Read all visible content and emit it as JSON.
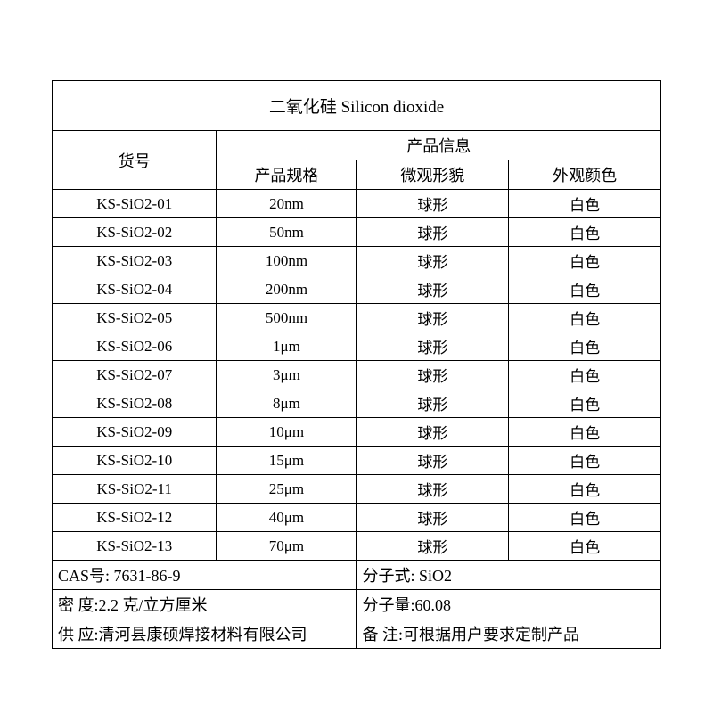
{
  "title": "二氧化硅 Silicon dioxide",
  "headers": {
    "product_no": "货号",
    "product_info": "产品信息",
    "spec": "产品规格",
    "morphology": "微观形貌",
    "appearance": "外观颜色"
  },
  "rows": [
    {
      "no": "KS-SiO2-01",
      "spec": "20nm",
      "morph": "球形",
      "color": "白色"
    },
    {
      "no": "KS-SiO2-02",
      "spec": "50nm",
      "morph": "球形",
      "color": "白色"
    },
    {
      "no": "KS-SiO2-03",
      "spec": "100nm",
      "morph": "球形",
      "color": "白色"
    },
    {
      "no": "KS-SiO2-04",
      "spec": "200nm",
      "morph": "球形",
      "color": "白色"
    },
    {
      "no": "KS-SiO2-05",
      "spec": "500nm",
      "morph": "球形",
      "color": "白色"
    },
    {
      "no": "KS-SiO2-06",
      "spec": "1μm",
      "morph": "球形",
      "color": "白色"
    },
    {
      "no": "KS-SiO2-07",
      "spec": "3μm",
      "morph": "球形",
      "color": "白色"
    },
    {
      "no": "KS-SiO2-08",
      "spec": "8μm",
      "morph": "球形",
      "color": "白色"
    },
    {
      "no": "KS-SiO2-09",
      "spec": "10μm",
      "morph": "球形",
      "color": "白色"
    },
    {
      "no": "KS-SiO2-10",
      "spec": "15μm",
      "morph": "球形",
      "color": "白色"
    },
    {
      "no": "KS-SiO2-11",
      "spec": "25μm",
      "morph": "球形",
      "color": "白色"
    },
    {
      "no": "KS-SiO2-12",
      "spec": "40μm",
      "morph": "球形",
      "color": "白色"
    },
    {
      "no": "KS-SiO2-13",
      "spec": "70μm",
      "morph": "球形",
      "color": "白色"
    }
  ],
  "footer": {
    "cas": "CAS号:  7631-86-9",
    "formula": "分子式:  SiO2",
    "density": "密    度:2.2 克/立方厘米",
    "molweight": "分子量:60.08",
    "supplier": "供    应:清河县康硕焊接材料有限公司",
    "remark": "备  注:可根据用户要求定制产品"
  },
  "style": {
    "border_color": "#000000",
    "background": "#ffffff",
    "font_family": "SimSun",
    "cell_fontsize": 17,
    "title_fontsize": 19,
    "header_fontsize": 18,
    "footer_fontsize": 18
  }
}
